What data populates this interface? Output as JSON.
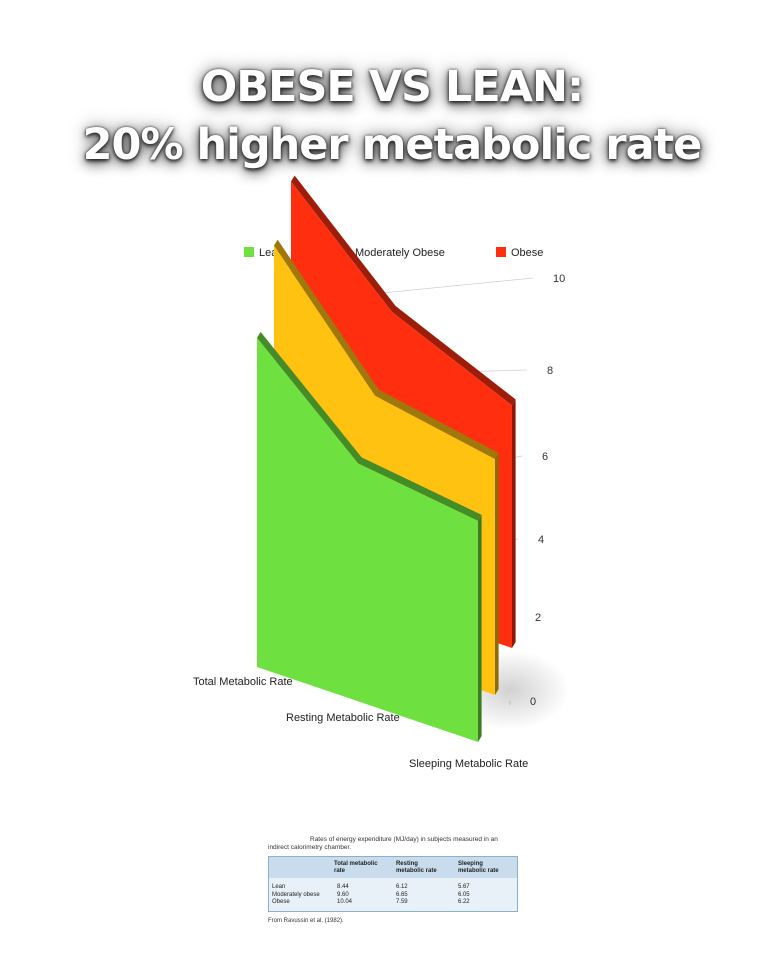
{
  "title": {
    "line1": "OBESE VS LEAN:",
    "line2": "20% higher metabolic rate"
  },
  "chart_data": {
    "type": "area",
    "categories": [
      "Total Metabolic Rate",
      "Resting Metabolic Rate",
      "Sleeping Metabolic Rate"
    ],
    "series": [
      {
        "name": "Lean",
        "values": [
          8.44,
          6.12,
          5.67
        ],
        "color": "#6ee140"
      },
      {
        "name": "Moderately Obese",
        "values": [
          9.6,
          6.65,
          6.05
        ],
        "color": "#ffc211"
      },
      {
        "name": "Obese",
        "values": [
          10.04,
          7.59,
          6.22
        ],
        "color": "#ff2e0e"
      }
    ],
    "ylim": [
      0,
      10
    ],
    "yticks": [
      "0",
      "2",
      "4",
      "6",
      "8",
      "10"
    ],
    "legend": "top",
    "grid": true
  },
  "table": {
    "caption_line1": "Rates of energy expenditure (MJ/day) in subjects measured in an",
    "caption_line2": "indirect calorimetry chamber.",
    "headers": [
      "",
      "Total metabolic rate",
      "Resting metabolic rate",
      "Sleeping metabolic rate"
    ],
    "rows": [
      [
        "Lean",
        "8.44",
        "6.12",
        "5.67"
      ],
      [
        "Moderately obese",
        "9.60",
        "6.65",
        "6.05"
      ],
      [
        "Obese",
        "10.04",
        "7.59",
        "6.22"
      ]
    ],
    "source": "From Ravussin et al. (1982)."
  }
}
